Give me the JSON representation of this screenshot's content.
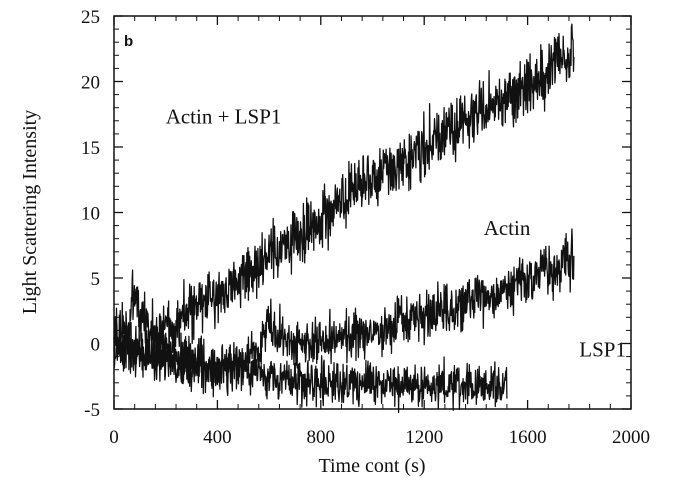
{
  "chart_data": {
    "type": "line",
    "panel_label": "b",
    "xlabel": "Time cont (s)",
    "ylabel": "Light Scattering Intensity",
    "xlim": [
      0,
      2000
    ],
    "ylim": [
      -5,
      25
    ],
    "x_ticks": [
      0,
      400,
      800,
      1200,
      1600,
      2000
    ],
    "y_ticks": [
      -5,
      0,
      5,
      10,
      15,
      20,
      25
    ],
    "grid": false,
    "legend": "none",
    "annotations": [
      {
        "text": "Actin + LSP1",
        "x": 200,
        "y": 16.8
      },
      {
        "text": "Actin",
        "x": 1430,
        "y": 8.3
      },
      {
        "text": "LSP1",
        "x": 1800,
        "y": -1.0
      }
    ],
    "series": [
      {
        "label_ref": "Actin + LSP1",
        "x": [
          0,
          60,
          80,
          100,
          140,
          200,
          300,
          400,
          500,
          600,
          700,
          800,
          900,
          1000,
          1100,
          1200,
          1300,
          1400,
          1500,
          1600,
          1700,
          1780
        ],
        "y": [
          0.5,
          1.5,
          4.0,
          2.0,
          1.0,
          1.2,
          2.5,
          3.8,
          5.0,
          6.5,
          8.0,
          9.5,
          11.0,
          12.5,
          13.8,
          15.0,
          16.2,
          17.4,
          18.6,
          19.8,
          21.0,
          22.0
        ],
        "noise": 1.1
      },
      {
        "label_ref": "Actin",
        "x": [
          0,
          100,
          200,
          300,
          400,
          500,
          550,
          600,
          650,
          700,
          800,
          900,
          1000,
          1100,
          1200,
          1300,
          1400,
          1500,
          1600,
          1700,
          1780
        ],
        "y": [
          0.5,
          -0.5,
          -1.0,
          -1.5,
          -2.0,
          -1.5,
          -0.5,
          1.5,
          0.5,
          0.0,
          0.0,
          0.5,
          0.8,
          1.5,
          2.0,
          2.5,
          3.2,
          4.0,
          4.8,
          5.7,
          6.5
        ],
        "noise": 0.9
      },
      {
        "label_ref": "LSP1",
        "x": [
          0,
          100,
          200,
          300,
          400,
          500,
          600,
          700,
          800,
          900,
          1000,
          1100,
          1200,
          1300,
          1400,
          1520
        ],
        "y": [
          -0.5,
          -1.0,
          -1.0,
          -1.5,
          -2.0,
          -2.0,
          -2.5,
          -2.8,
          -2.8,
          -3.0,
          -3.0,
          -3.1,
          -3.2,
          -3.3,
          -3.3,
          -3.4
        ],
        "noise": 0.8
      }
    ]
  }
}
